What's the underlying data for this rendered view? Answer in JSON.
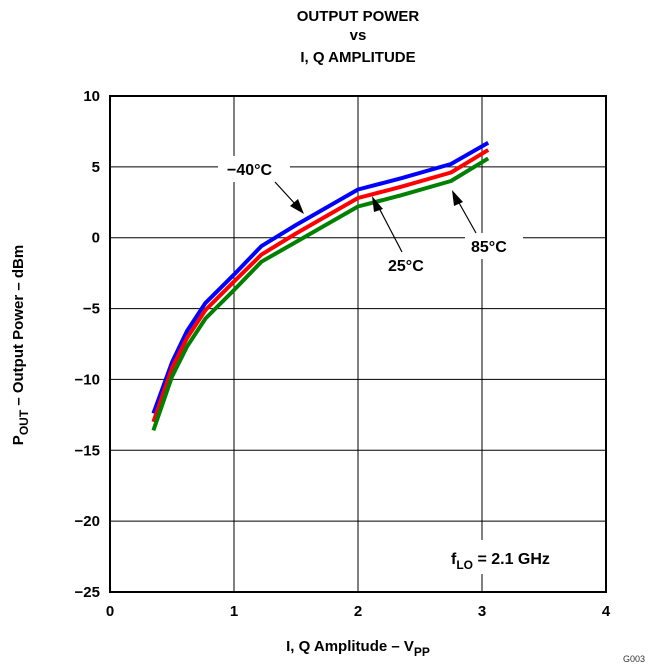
{
  "chart_data": {
    "type": "line",
    "title_lines": [
      "OUTPUT POWER",
      "vs",
      "I, Q AMPLITUDE"
    ],
    "xlabel": {
      "main": "I, Q Amplitude – V",
      "sub": "PP"
    },
    "ylabel": {
      "p": "P",
      "sub": "OUT",
      "rest": " – Output Power – dBm"
    },
    "xlim": [
      0,
      4
    ],
    "ylim": [
      -25,
      10
    ],
    "x_ticks": [
      0,
      1,
      2,
      3,
      4
    ],
    "x_tick_labels": [
      "0",
      "1",
      "2",
      "3",
      "4"
    ],
    "y_ticks": [
      10,
      5,
      0,
      -5,
      -10,
      -15,
      -20,
      -25
    ],
    "y_tick_labels": [
      "10",
      "5",
      "0",
      "−5",
      "−10",
      "−15",
      "−20",
      "−25"
    ],
    "grid": true,
    "series": [
      {
        "name": "−40°C",
        "color": "#0000ff",
        "x": [
          0.35,
          0.5,
          0.62,
          0.77,
          1.0,
          1.22,
          1.5,
          2.0,
          2.35,
          2.75,
          3.05
        ],
        "y": [
          -12.4,
          -8.8,
          -6.6,
          -4.6,
          -2.6,
          -0.6,
          0.9,
          3.4,
          4.2,
          5.2,
          6.7
        ]
      },
      {
        "name": "25°C",
        "color": "#ff0000",
        "x": [
          0.35,
          0.5,
          0.62,
          0.77,
          1.0,
          1.22,
          1.5,
          2.0,
          2.35,
          2.75,
          3.05
        ],
        "y": [
          -13.0,
          -9.2,
          -7.1,
          -5.1,
          -3.1,
          -1.2,
          0.3,
          2.8,
          3.6,
          4.6,
          6.2
        ]
      },
      {
        "name": "85°C",
        "color": "#008000",
        "x": [
          0.35,
          0.5,
          0.62,
          0.77,
          1.0,
          1.22,
          1.5,
          2.0,
          2.35,
          2.75,
          3.05
        ],
        "y": [
          -13.6,
          -9.8,
          -7.7,
          -5.7,
          -3.7,
          -1.7,
          -0.3,
          2.2,
          3.0,
          4.0,
          5.6
        ]
      }
    ],
    "annotations": {
      "minus40": "−40°C",
      "t25": "25°C",
      "t85": "85°C",
      "flo_main": "f",
      "flo_sub": "LO",
      "flo_rest": " = 2.1 GHz"
    },
    "corner_code": "G003"
  }
}
